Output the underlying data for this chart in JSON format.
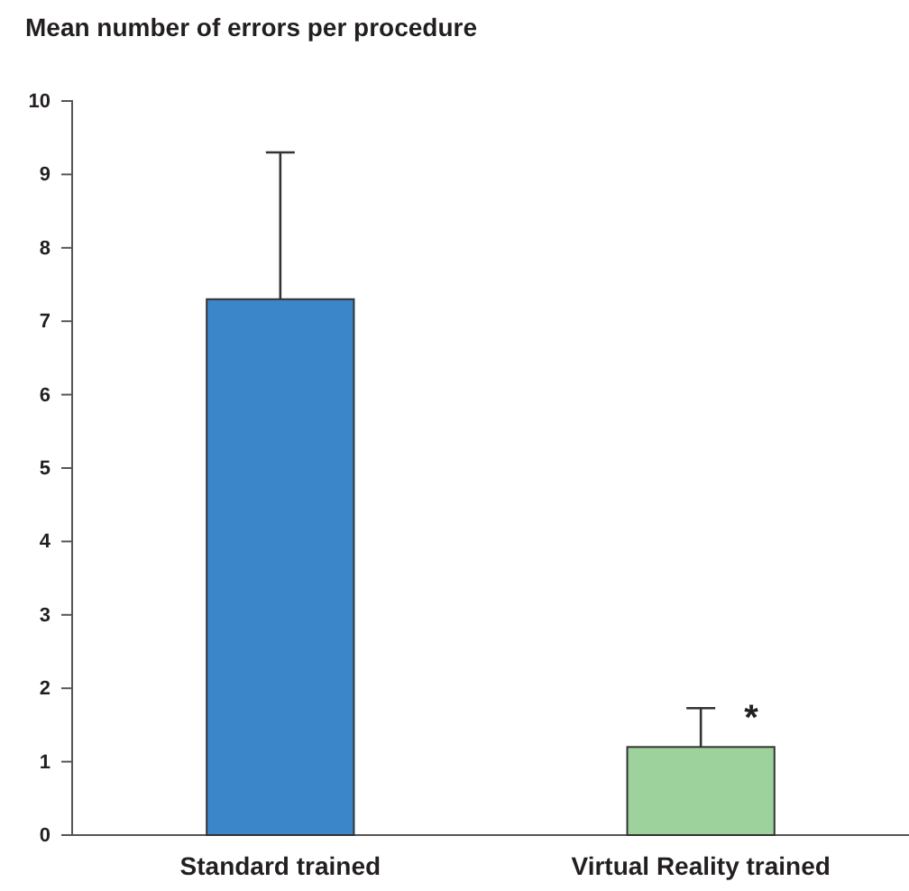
{
  "chart_data": {
    "type": "bar",
    "title": "Mean number of errors per procedure",
    "categories": [
      "Standard trained",
      "Virtual Reality trained"
    ],
    "values": [
      7.3,
      1.2
    ],
    "colors": [
      "#3a86c8",
      "#9dd29c"
    ],
    "errors": [
      [
        7.3,
        9.3
      ],
      [
        1.2,
        1.73
      ]
    ],
    "ylim": [
      0,
      10
    ],
    "yticks": [
      0,
      1,
      2,
      3,
      4,
      5,
      6,
      7,
      8,
      9,
      10
    ],
    "annotations": [
      {
        "text": "*",
        "x": "Virtual Reality trained",
        "y": 1.73
      }
    ]
  }
}
